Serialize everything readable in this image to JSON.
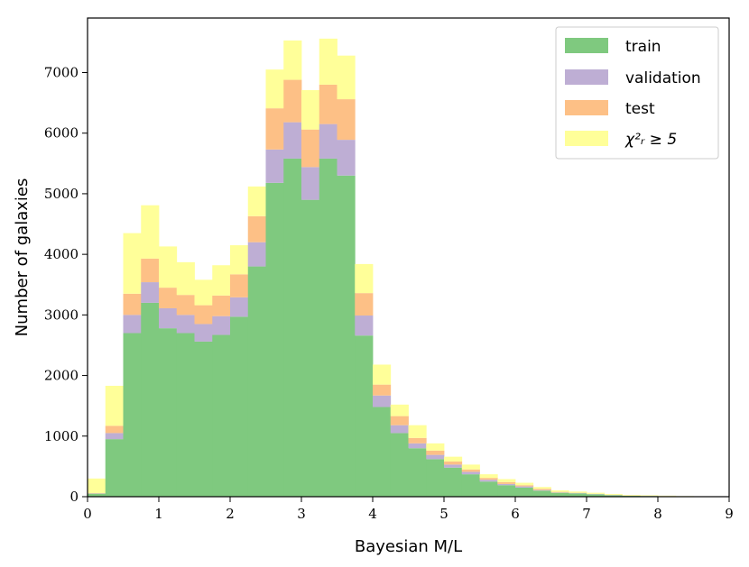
{
  "chart_data": {
    "type": "bar",
    "subtype": "stacked-histogram",
    "bin_edges": [
      0,
      0.25,
      0.5,
      0.75,
      1.0,
      1.25,
      1.5,
      1.75,
      2.0,
      2.25,
      2.5,
      2.75,
      3.0,
      3.25,
      3.5,
      3.75,
      4.0,
      4.25,
      4.5,
      4.75,
      5.0,
      5.25,
      5.5,
      5.75,
      6.0,
      6.25,
      6.5,
      6.75,
      7.0,
      7.25,
      7.5,
      7.75,
      8.0,
      8.25,
      8.5,
      8.75,
      9.0
    ],
    "series": [
      {
        "name": "train",
        "color": "#7fc97f",
        "values": [
          50,
          950,
          2700,
          3200,
          2780,
          2700,
          2560,
          2670,
          2970,
          3800,
          5180,
          5580,
          4900,
          5580,
          5300,
          2660,
          1480,
          1050,
          800,
          620,
          480,
          370,
          250,
          190,
          150,
          100,
          65,
          55,
          40,
          25,
          15,
          12,
          8,
          5,
          3,
          2
        ]
      },
      {
        "name": "validation",
        "color": "#beaed4",
        "values": [
          5,
          100,
          300,
          340,
          330,
          300,
          290,
          310,
          320,
          400,
          550,
          600,
          540,
          570,
          590,
          330,
          190,
          130,
          80,
          70,
          50,
          40,
          30,
          20,
          20,
          10,
          5,
          5,
          4,
          3,
          2,
          1,
          1,
          0,
          0,
          0
        ]
      },
      {
        "name": "test",
        "color": "#fdc086",
        "values": [
          5,
          120,
          350,
          390,
          340,
          330,
          310,
          340,
          380,
          430,
          680,
          700,
          620,
          650,
          670,
          370,
          180,
          150,
          90,
          70,
          50,
          40,
          30,
          30,
          20,
          20,
          10,
          5,
          3,
          3,
          2,
          1,
          1,
          0,
          0,
          0
        ]
      },
      {
        "name": "$\\chi^2_r \\geq 5$",
        "color": "#ffff99",
        "values": [
          240,
          660,
          1000,
          880,
          680,
          540,
          420,
          500,
          480,
          490,
          640,
          650,
          650,
          760,
          720,
          480,
          330,
          190,
          210,
          120,
          80,
          80,
          60,
          50,
          40,
          30,
          25,
          20,
          18,
          14,
          11,
          9,
          7,
          5,
          4,
          3
        ]
      }
    ],
    "xlabel": "Bayesian M/L",
    "ylabel": "Number of galaxies",
    "xlim": [
      0,
      9
    ],
    "ylim": [
      0,
      7900
    ],
    "xticks": [
      "0",
      "1",
      "2",
      "3",
      "4",
      "5",
      "6",
      "7",
      "8",
      "9"
    ],
    "yticks": [
      "0",
      "1000",
      "2000",
      "3000",
      "4000",
      "5000",
      "6000",
      "7000"
    ],
    "grid": false,
    "legend_position": "top-right"
  },
  "legend": {
    "items": [
      {
        "label": "train",
        "color": "#7fc97f"
      },
      {
        "label": "validation",
        "color": "#beaed4"
      },
      {
        "label": "test",
        "color": "#fdc086"
      },
      {
        "label": "χ²ᵣ ≥ 5",
        "color": "#ffff99"
      }
    ]
  }
}
